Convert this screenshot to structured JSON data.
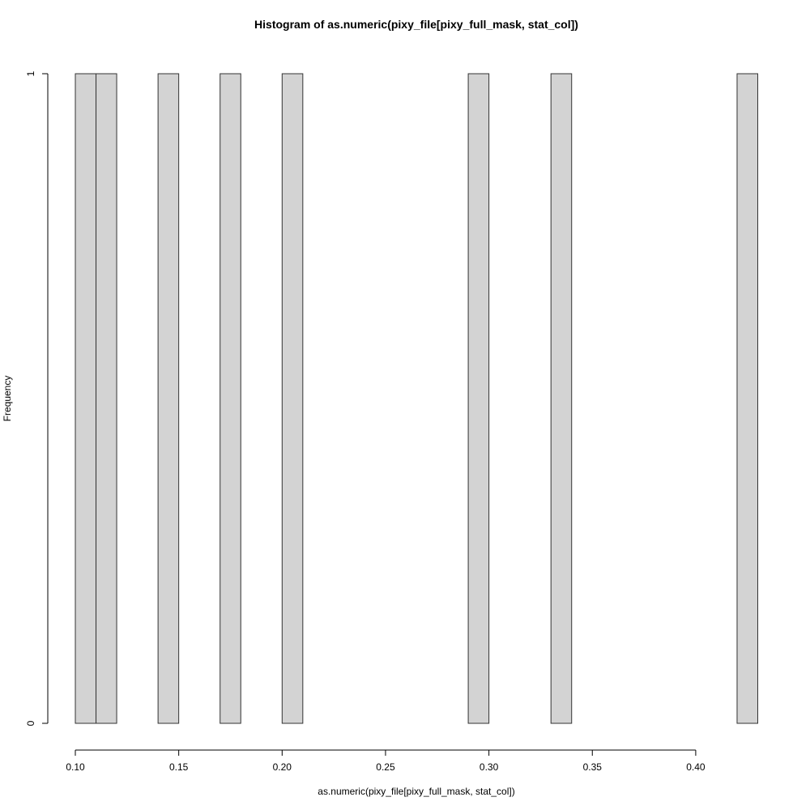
{
  "chart_data": {
    "type": "bar",
    "title": "Histogram of as.numeric(pixy_file[pixy_full_mask, stat_col])",
    "xlabel": "as.numeric(pixy_file[pixy_full_mask, stat_col])",
    "ylabel": "Frequency",
    "bar_color": "#d3d3d3",
    "xlim": [
      0.1,
      0.43
    ],
    "ylim": [
      0,
      1
    ],
    "xticks": [
      "0.10",
      "0.15",
      "0.20",
      "0.25",
      "0.30",
      "0.35",
      "0.40"
    ],
    "xtick_values": [
      0.1,
      0.15,
      0.2,
      0.25,
      0.3,
      0.35,
      0.4
    ],
    "yticks": [
      "0",
      "1"
    ],
    "ytick_values": [
      0,
      1
    ],
    "bins": [
      {
        "start": 0.1,
        "end": 0.11,
        "count": 1
      },
      {
        "start": 0.11,
        "end": 0.12,
        "count": 1
      },
      {
        "start": 0.14,
        "end": 0.15,
        "count": 1
      },
      {
        "start": 0.17,
        "end": 0.18,
        "count": 1
      },
      {
        "start": 0.2,
        "end": 0.21,
        "count": 1
      },
      {
        "start": 0.29,
        "end": 0.3,
        "count": 1
      },
      {
        "start": 0.33,
        "end": 0.34,
        "count": 1
      },
      {
        "start": 0.42,
        "end": 0.43,
        "count": 1
      }
    ],
    "grid": false,
    "legend": "none"
  }
}
